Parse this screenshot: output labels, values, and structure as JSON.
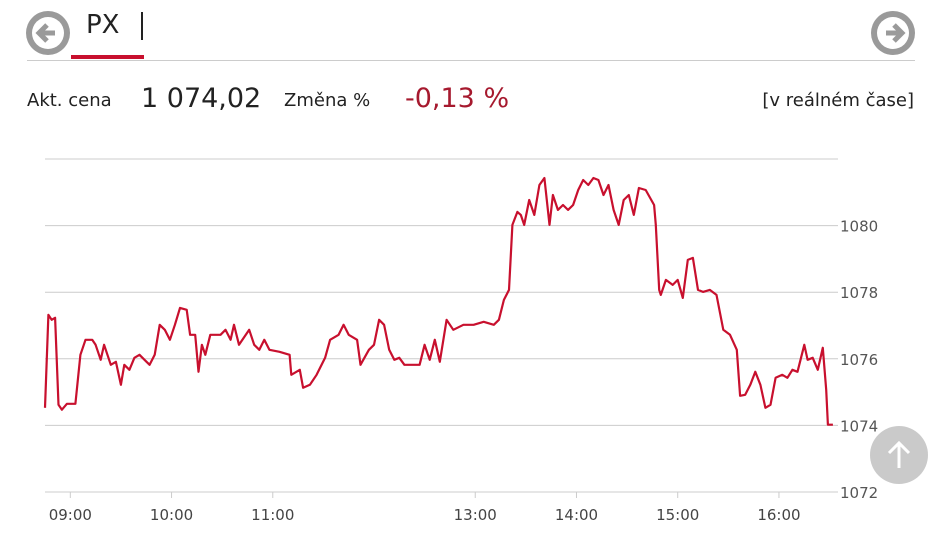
{
  "header": {
    "tab": "PX"
  },
  "quote": {
    "price_label": "Akt. cena",
    "price": "1 074,02",
    "change_label": "Změna %",
    "change": "-0,13 %",
    "realtime": "[v reálném čase]"
  },
  "chart_data": {
    "type": "line",
    "color": "#c8102e",
    "x": [
      525,
      527,
      529,
      531,
      533,
      535,
      538,
      543,
      546,
      549,
      553,
      555,
      558,
      560,
      564,
      567,
      570,
      572,
      575,
      578,
      581,
      584,
      587,
      590,
      593,
      596,
      599,
      602,
      605,
      609,
      611,
      614,
      616,
      618,
      620,
      623,
      629,
      632,
      635,
      637,
      640,
      646,
      649,
      652,
      655,
      658,
      664,
      670,
      671,
      676,
      678,
      682,
      686,
      691,
      694,
      699,
      702,
      705,
      710,
      712,
      717,
      720,
      723,
      726,
      729,
      732,
      735,
      738,
      747,
      750,
      753,
      756,
      759,
      763,
      767,
      773,
      779,
      785,
      791,
      794,
      797,
      800,
      802,
      805,
      807,
      809,
      812,
      815,
      818,
      821,
      824,
      826,
      829,
      832,
      835,
      838,
      841,
      844,
      847,
      850,
      853,
      856,
      859,
      862,
      865,
      868,
      871,
      874,
      877,
      881,
      886,
      887,
      889,
      890,
      893,
      897,
      900,
      903,
      906,
      909,
      912,
      915,
      919,
      923,
      927,
      931,
      935,
      937,
      940,
      943,
      946,
      949,
      952,
      955,
      958,
      962,
      965,
      968,
      971,
      975,
      977,
      980,
      983,
      986,
      988,
      989,
      992
    ],
    "values": [
      1074.53,
      1077.32,
      1077.17,
      1077.23,
      1074.62,
      1074.47,
      1074.65,
      1074.65,
      1076.12,
      1076.57,
      1076.57,
      1076.42,
      1075.97,
      1076.42,
      1075.82,
      1075.91,
      1075.22,
      1075.82,
      1075.67,
      1076.03,
      1076.12,
      1075.97,
      1075.82,
      1076.12,
      1077.02,
      1076.87,
      1076.57,
      1077.02,
      1077.53,
      1077.47,
      1076.72,
      1076.72,
      1075.61,
      1076.42,
      1076.12,
      1076.72,
      1076.72,
      1076.87,
      1076.57,
      1077.02,
      1076.42,
      1076.87,
      1076.42,
      1076.27,
      1076.57,
      1076.27,
      1076.21,
      1076.12,
      1075.52,
      1075.67,
      1075.13,
      1075.22,
      1075.52,
      1076.03,
      1076.57,
      1076.72,
      1077.02,
      1076.72,
      1076.57,
      1075.82,
      1076.27,
      1076.42,
      1077.17,
      1077.02,
      1076.27,
      1075.97,
      1076.03,
      1075.82,
      1075.82,
      1076.42,
      1075.97,
      1076.57,
      1075.91,
      1077.17,
      1076.87,
      1077.02,
      1077.02,
      1077.11,
      1077.02,
      1077.17,
      1077.77,
      1078.07,
      1080.02,
      1080.41,
      1080.32,
      1080.02,
      1080.77,
      1080.32,
      1081.22,
      1081.43,
      1080.02,
      1080.92,
      1080.47,
      1080.62,
      1080.47,
      1080.62,
      1081.07,
      1081.37,
      1081.22,
      1081.43,
      1081.37,
      1080.92,
      1081.22,
      1080.47,
      1080.02,
      1080.77,
      1080.92,
      1080.32,
      1081.13,
      1081.07,
      1080.62,
      1080.02,
      1078.07,
      1077.92,
      1078.37,
      1078.22,
      1078.37,
      1077.83,
      1078.97,
      1079.03,
      1078.07,
      1078.01,
      1078.07,
      1077.92,
      1076.87,
      1076.72,
      1076.27,
      1074.89,
      1074.92,
      1075.22,
      1075.61,
      1075.22,
      1074.53,
      1074.62,
      1075.43,
      1075.52,
      1075.43,
      1075.67,
      1075.61,
      1076.42,
      1075.97,
      1076.03,
      1075.67,
      1076.33,
      1075.07,
      1074.02,
      1074.02
    ],
    "xlim": [
      525,
      995
    ],
    "xticks": [
      {
        "value": 540,
        "label": "09:00"
      },
      {
        "value": 600,
        "label": "10:00"
      },
      {
        "value": 660,
        "label": "11:00"
      },
      {
        "value": 780,
        "label": "13:00"
      },
      {
        "value": 840,
        "label": "14:00"
      },
      {
        "value": 900,
        "label": "15:00"
      },
      {
        "value": 960,
        "label": "16:00"
      }
    ],
    "ylim": [
      1072,
      1082
    ],
    "yticks": [
      1072,
      1074,
      1076,
      1078,
      1080
    ],
    "grid": true
  }
}
